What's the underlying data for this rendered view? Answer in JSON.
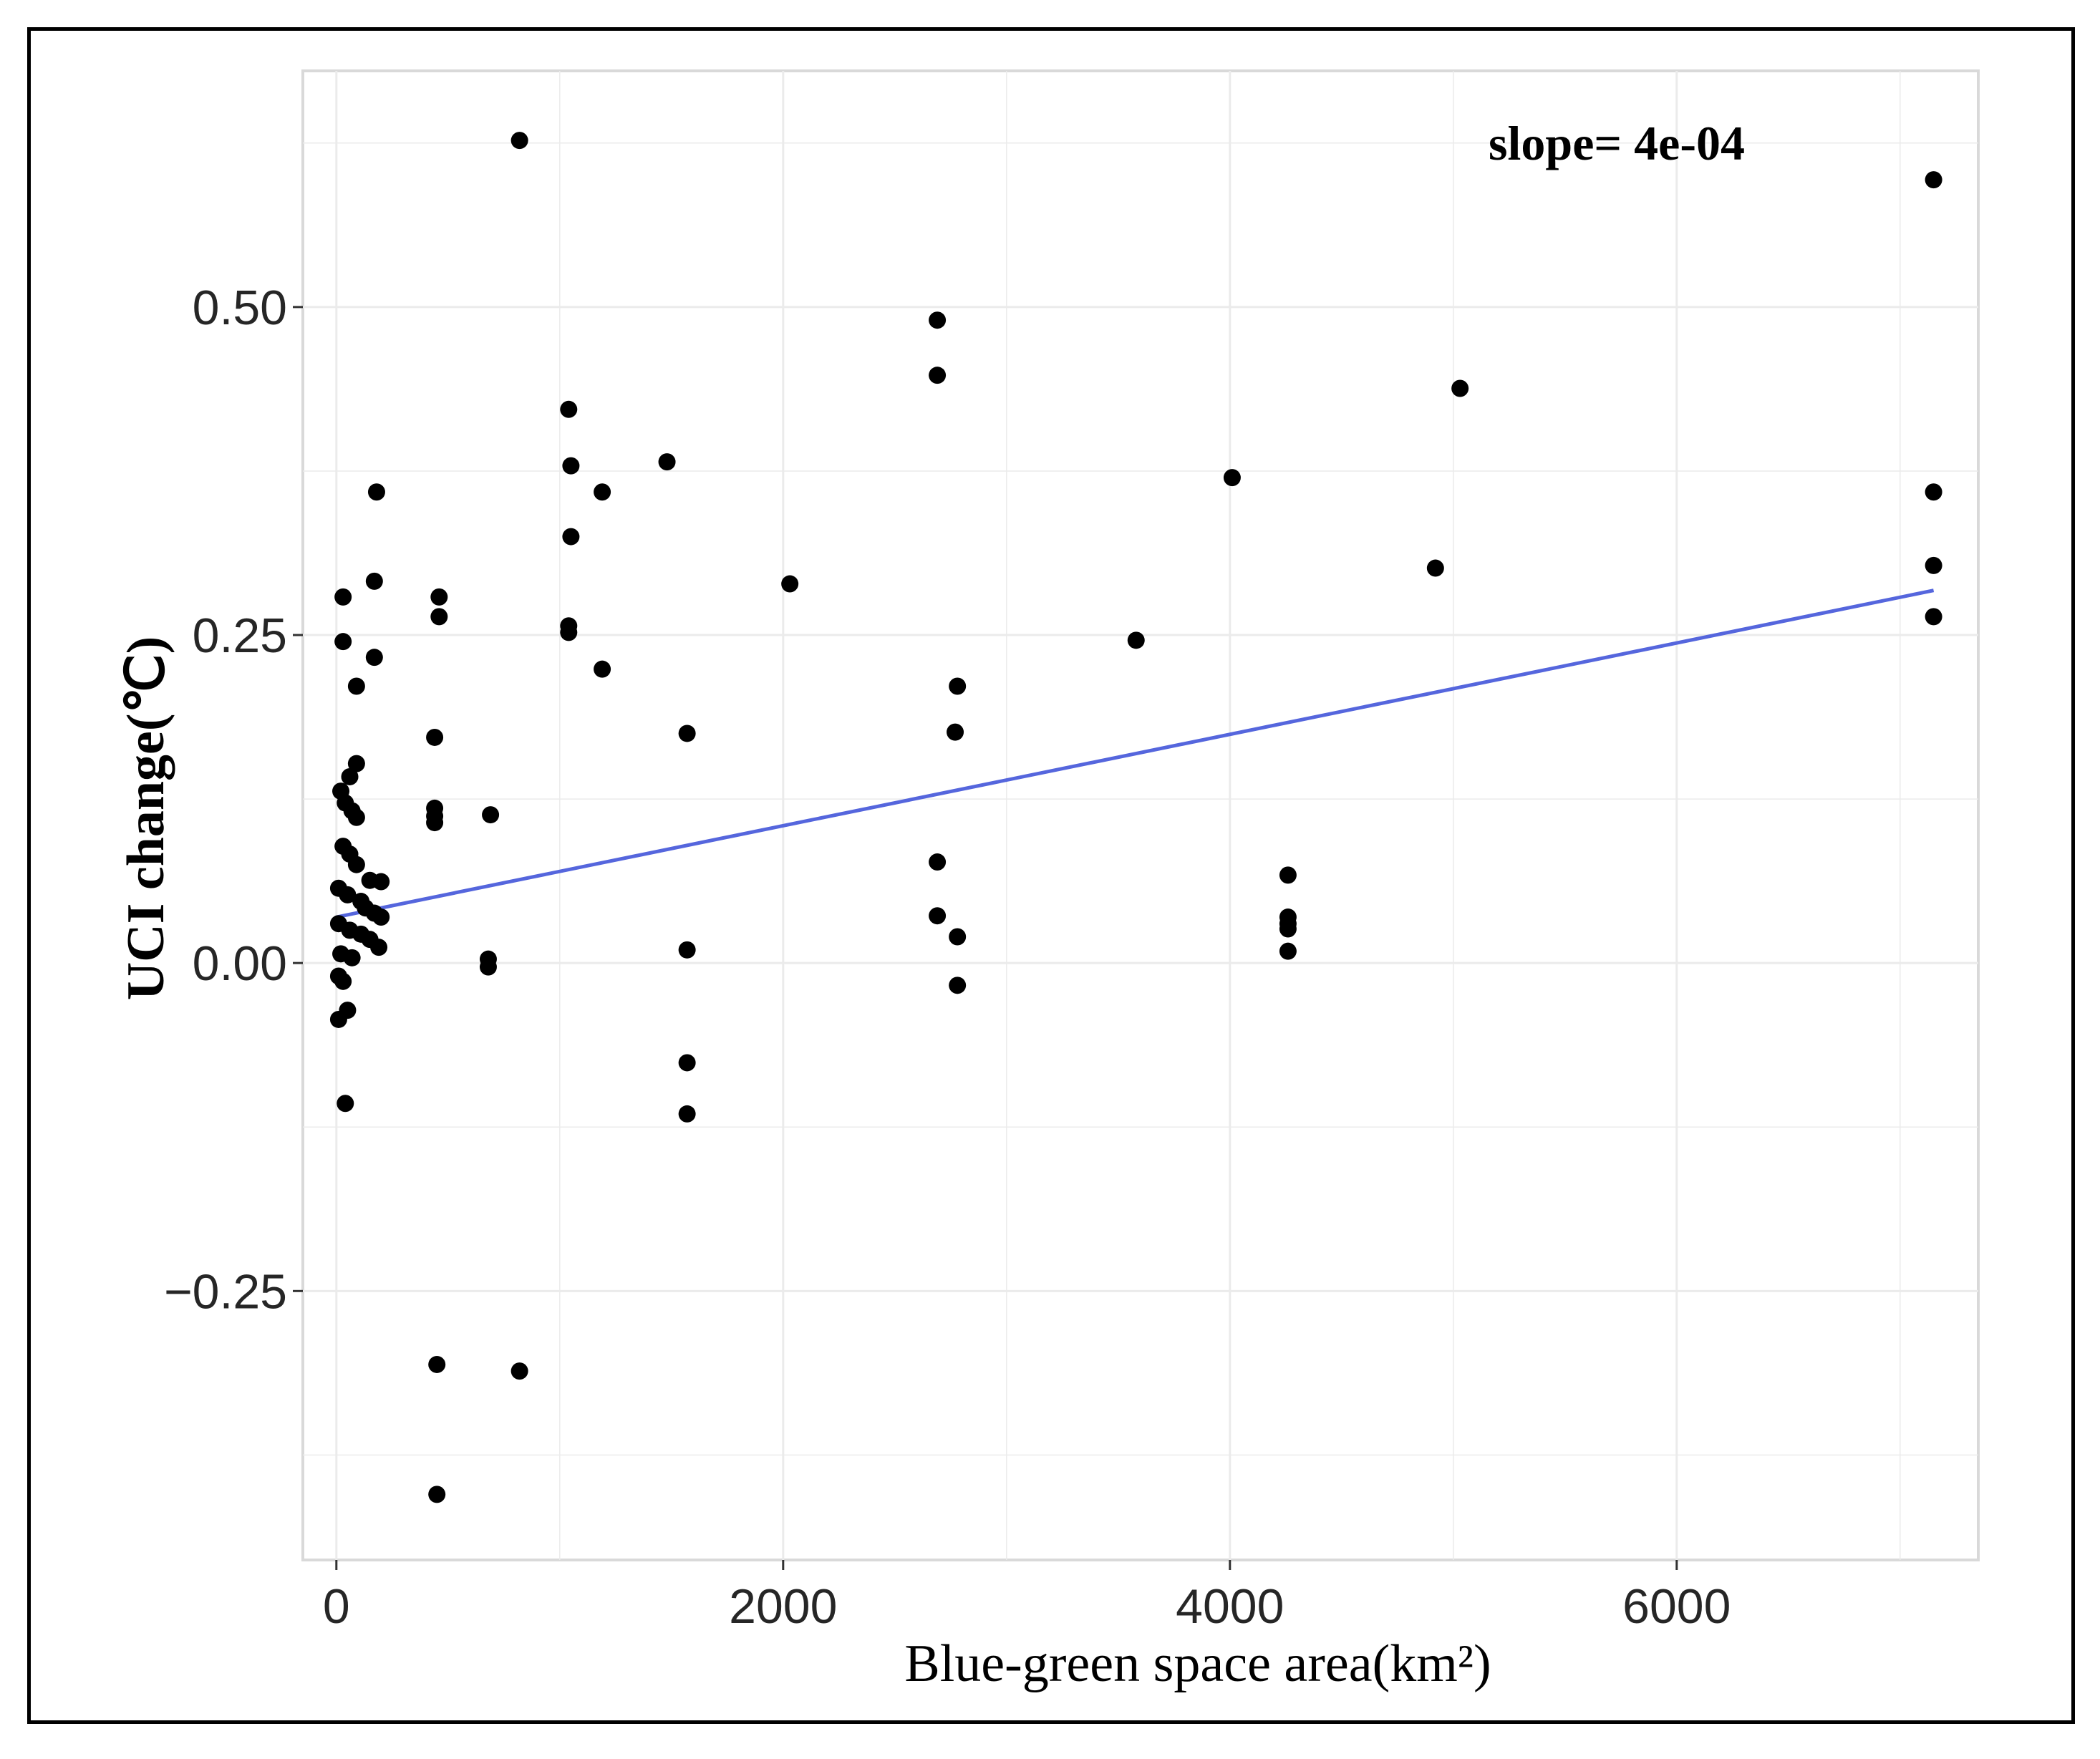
{
  "chart_data": {
    "type": "scatter",
    "title": "",
    "xlabel": "Blue-green space area(km²)",
    "ylabel": "UCI change(℃)",
    "annotation": "slope= 4e-04",
    "xlim": [
      -150,
      7350
    ],
    "ylim": [
      -0.455,
      0.68
    ],
    "x_ticks": [
      {
        "value": 0,
        "label": "0"
      },
      {
        "value": 2000,
        "label": "2000"
      },
      {
        "value": 4000,
        "label": "4000"
      },
      {
        "value": 6000,
        "label": "6000"
      }
    ],
    "y_ticks": [
      {
        "value": -0.25,
        "label": "−0.25"
      },
      {
        "value": 0.0,
        "label": "0.00"
      },
      {
        "value": 0.25,
        "label": "0.25"
      },
      {
        "value": 0.5,
        "label": "0.50"
      }
    ],
    "grid": true,
    "point_color": "#000000",
    "fit_line": {
      "x": [
        0,
        7150
      ],
      "y": [
        0.035,
        0.284
      ],
      "color": "#5566dd"
    },
    "points": [
      {
        "x": 820,
        "y": 0.627
      },
      {
        "x": 7150,
        "y": 0.597
      },
      {
        "x": 2690,
        "y": 0.49
      },
      {
        "x": 2690,
        "y": 0.448
      },
      {
        "x": 5030,
        "y": 0.438
      },
      {
        "x": 1040,
        "y": 0.422
      },
      {
        "x": 1050,
        "y": 0.379
      },
      {
        "x": 1480,
        "y": 0.382
      },
      {
        "x": 4010,
        "y": 0.37
      },
      {
        "x": 7150,
        "y": 0.359
      },
      {
        "x": 180,
        "y": 0.359
      },
      {
        "x": 1190,
        "y": 0.359
      },
      {
        "x": 1050,
        "y": 0.325
      },
      {
        "x": 4920,
        "y": 0.301
      },
      {
        "x": 7150,
        "y": 0.303
      },
      {
        "x": 2030,
        "y": 0.289
      },
      {
        "x": 170,
        "y": 0.291
      },
      {
        "x": 30,
        "y": 0.279
      },
      {
        "x": 460,
        "y": 0.279
      },
      {
        "x": 460,
        "y": 0.264
      },
      {
        "x": 7150,
        "y": 0.264
      },
      {
        "x": 1040,
        "y": 0.257
      },
      {
        "x": 1040,
        "y": 0.252
      },
      {
        "x": 3580,
        "y": 0.246
      },
      {
        "x": 30,
        "y": 0.245
      },
      {
        "x": 170,
        "y": 0.233
      },
      {
        "x": 1190,
        "y": 0.224
      },
      {
        "x": 2780,
        "y": 0.211
      },
      {
        "x": 90,
        "y": 0.211
      },
      {
        "x": 1570,
        "y": 0.175
      },
      {
        "x": 2770,
        "y": 0.176
      },
      {
        "x": 440,
        "y": 0.172
      },
      {
        "x": 90,
        "y": 0.152
      },
      {
        "x": 60,
        "y": 0.142
      },
      {
        "x": 20,
        "y": 0.131
      },
      {
        "x": 40,
        "y": 0.122
      },
      {
        "x": 70,
        "y": 0.116
      },
      {
        "x": 90,
        "y": 0.111
      },
      {
        "x": 440,
        "y": 0.118
      },
      {
        "x": 440,
        "y": 0.112
      },
      {
        "x": 440,
        "y": 0.107
      },
      {
        "x": 690,
        "y": 0.113
      },
      {
        "x": 30,
        "y": 0.089
      },
      {
        "x": 60,
        "y": 0.083
      },
      {
        "x": 90,
        "y": 0.075
      },
      {
        "x": 2690,
        "y": 0.077
      },
      {
        "x": 4260,
        "y": 0.067
      },
      {
        "x": 150,
        "y": 0.063
      },
      {
        "x": 200,
        "y": 0.062
      },
      {
        "x": 10,
        "y": 0.057
      },
      {
        "x": 50,
        "y": 0.052
      },
      {
        "x": 110,
        "y": 0.047
      },
      {
        "x": 130,
        "y": 0.042
      },
      {
        "x": 170,
        "y": 0.038
      },
      {
        "x": 200,
        "y": 0.035
      },
      {
        "x": 2690,
        "y": 0.036
      },
      {
        "x": 4260,
        "y": 0.035
      },
      {
        "x": 4260,
        "y": 0.03
      },
      {
        "x": 4260,
        "y": 0.026
      },
      {
        "x": 10,
        "y": 0.03
      },
      {
        "x": 60,
        "y": 0.025
      },
      {
        "x": 110,
        "y": 0.022
      },
      {
        "x": 150,
        "y": 0.018
      },
      {
        "x": 190,
        "y": 0.012
      },
      {
        "x": 2780,
        "y": 0.02
      },
      {
        "x": 1570,
        "y": 0.01
      },
      {
        "x": 4260,
        "y": 0.009
      },
      {
        "x": 20,
        "y": 0.007
      },
      {
        "x": 70,
        "y": 0.004
      },
      {
        "x": 680,
        "y": 0.003
      },
      {
        "x": 680,
        "y": -0.003
      },
      {
        "x": 10,
        "y": -0.01
      },
      {
        "x": 30,
        "y": -0.014
      },
      {
        "x": 2780,
        "y": -0.017
      },
      {
        "x": 50,
        "y": -0.036
      },
      {
        "x": 10,
        "y": -0.043
      },
      {
        "x": 1570,
        "y": -0.076
      },
      {
        "x": 40,
        "y": -0.107
      },
      {
        "x": 1570,
        "y": -0.115
      },
      {
        "x": 450,
        "y": -0.306
      },
      {
        "x": 820,
        "y": -0.311
      },
      {
        "x": 450,
        "y": -0.405
      }
    ]
  }
}
